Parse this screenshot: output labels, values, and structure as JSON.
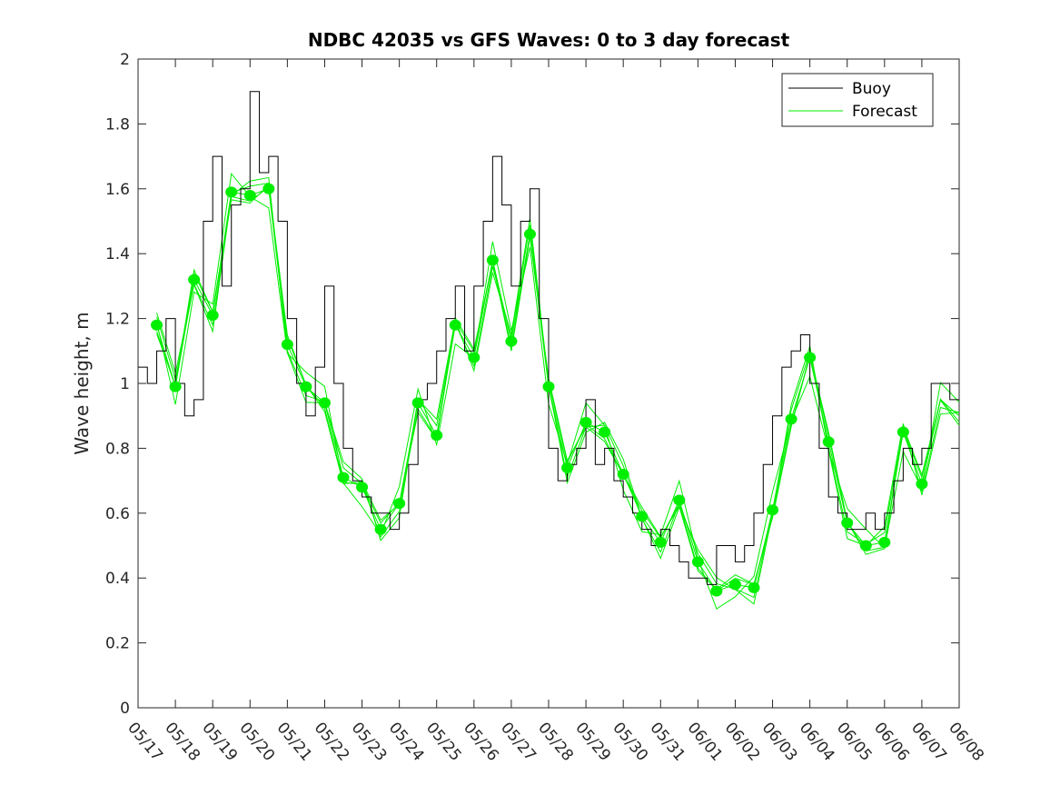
{
  "chart_data": {
    "type": "line",
    "title": "NDBC 42035 vs GFS Waves: 0 to 3 day forecast",
    "xlabel": "",
    "ylabel": "Wave height, m",
    "x_tick_labels": [
      "05/17",
      "05/18",
      "05/19",
      "05/20",
      "05/21",
      "05/22",
      "05/23",
      "05/24",
      "05/25",
      "05/26",
      "05/27",
      "05/28",
      "05/29",
      "05/30",
      "05/31",
      "06/01",
      "06/02",
      "06/03",
      "06/04",
      "06/05",
      "06/06",
      "06/07",
      "06/08"
    ],
    "x_range_days": [
      0,
      22
    ],
    "y_ticks": [
      "0",
      "0.2",
      "0.4",
      "0.6",
      "0.8",
      "1",
      "1.2",
      "1.4",
      "1.6",
      "1.8",
      "2"
    ],
    "ylim": [
      0,
      2
    ],
    "grid": false,
    "legend": {
      "placement": "top-right",
      "entries": [
        {
          "label": "Buoy",
          "color": "#000000"
        },
        {
          "label": "Forecast",
          "color": "#00ee00"
        }
      ]
    },
    "colors": {
      "buoy": "#000000",
      "forecast": "#00ee00"
    },
    "series": [
      {
        "name": "Buoy",
        "x": [
          0,
          0.25,
          0.5,
          0.75,
          1,
          1.25,
          1.5,
          1.75,
          2,
          2.25,
          2.5,
          2.75,
          3,
          3.25,
          3.5,
          3.75,
          4,
          4.25,
          4.5,
          4.75,
          5,
          5.25,
          5.5,
          5.75,
          6,
          6.25,
          6.5,
          6.75,
          7,
          7.25,
          7.5,
          7.75,
          8,
          8.25,
          8.5,
          8.75,
          9,
          9.25,
          9.5,
          9.75,
          10,
          10.25,
          10.5,
          10.75,
          11,
          11.25,
          11.5,
          11.75,
          12,
          12.25,
          12.5,
          12.75,
          13,
          13.25,
          13.5,
          13.75,
          14,
          14.25,
          14.5,
          14.75,
          15,
          15.25,
          15.5,
          15.75,
          16,
          16.25,
          16.5,
          16.75,
          17,
          17.25,
          17.5,
          17.75,
          18,
          18.25,
          18.5,
          18.75,
          19,
          19.25,
          19.5,
          19.75,
          20,
          20.25,
          20.5,
          20.75,
          21,
          21.25,
          21.5,
          21.75,
          22
        ],
        "values": [
          1.05,
          1.0,
          1.1,
          1.2,
          1.0,
          0.9,
          0.95,
          1.5,
          1.7,
          1.3,
          1.55,
          1.6,
          1.9,
          1.65,
          1.7,
          1.5,
          1.2,
          1.0,
          0.9,
          1.05,
          1.3,
          1.0,
          0.8,
          0.7,
          0.65,
          0.6,
          0.6,
          0.55,
          0.6,
          0.75,
          0.95,
          1.0,
          1.1,
          1.2,
          1.3,
          1.1,
          1.3,
          1.5,
          1.7,
          1.55,
          1.3,
          1.5,
          1.6,
          1.2,
          0.8,
          0.7,
          0.75,
          0.8,
          0.95,
          0.75,
          0.8,
          0.7,
          0.65,
          0.6,
          0.55,
          0.5,
          0.55,
          0.5,
          0.45,
          0.4,
          0.4,
          0.38,
          0.5,
          0.5,
          0.45,
          0.5,
          0.6,
          0.75,
          0.9,
          1.05,
          1.1,
          1.15,
          1.0,
          0.8,
          0.65,
          0.6,
          0.55,
          0.55,
          0.6,
          0.55,
          0.6,
          0.7,
          0.8,
          0.75,
          0.8,
          1.0,
          1.0,
          0.95,
          0.95
        ]
      },
      {
        "name": "Forecast",
        "x": [
          0.5,
          1,
          1.5,
          2,
          2.5,
          3,
          3.5,
          4,
          4.5,
          5,
          5.5,
          6,
          6.5,
          7,
          7.5,
          8,
          8.5,
          9,
          9.5,
          10,
          10.5,
          11,
          11.5,
          12,
          12.5,
          13,
          13.5,
          14,
          14.5,
          15,
          15.5,
          16,
          16.5,
          17,
          17.5,
          18,
          18.5,
          19,
          19.5,
          20,
          20.5,
          21,
          21.5,
          22
        ],
        "values": [
          1.18,
          0.99,
          1.32,
          1.21,
          1.59,
          1.58,
          1.6,
          1.12,
          0.99,
          0.94,
          0.71,
          0.68,
          0.55,
          0.63,
          0.94,
          0.84,
          1.18,
          1.08,
          1.38,
          1.13,
          1.46,
          0.99,
          0.74,
          0.88,
          0.85,
          0.72,
          0.59,
          0.51,
          0.64,
          0.45,
          0.36,
          0.38,
          0.37,
          0.61,
          0.89,
          1.08,
          0.82,
          0.57,
          0.5,
          0.51,
          0.85,
          0.69,
          0.95,
          0.9
        ]
      }
    ],
    "forecast_markers": {
      "x": [
        0.5,
        1,
        1.5,
        2,
        2.5,
        3,
        3.5,
        4,
        4.5,
        5,
        5.5,
        6,
        6.5,
        7,
        7.5,
        8,
        8.5,
        9,
        9.5,
        10,
        10.5,
        11,
        11.5,
        12,
        12.5,
        13,
        13.5,
        14,
        14.5,
        15,
        15.5,
        16,
        16.5,
        17,
        17.5,
        18,
        18.5,
        19,
        19.5,
        20,
        20.5,
        21
      ],
      "values": [
        1.18,
        0.99,
        1.32,
        1.21,
        1.59,
        1.58,
        1.6,
        1.12,
        0.99,
        0.94,
        0.71,
        0.68,
        0.55,
        0.63,
        0.94,
        0.84,
        1.18,
        1.08,
        1.38,
        1.13,
        1.46,
        0.99,
        0.74,
        0.88,
        0.85,
        0.72,
        0.59,
        0.51,
        0.64,
        0.45,
        0.36,
        0.38,
        0.37,
        0.61,
        0.89,
        1.08,
        0.82,
        0.57,
        0.5,
        0.51,
        0.85,
        0.69
      ]
    }
  }
}
